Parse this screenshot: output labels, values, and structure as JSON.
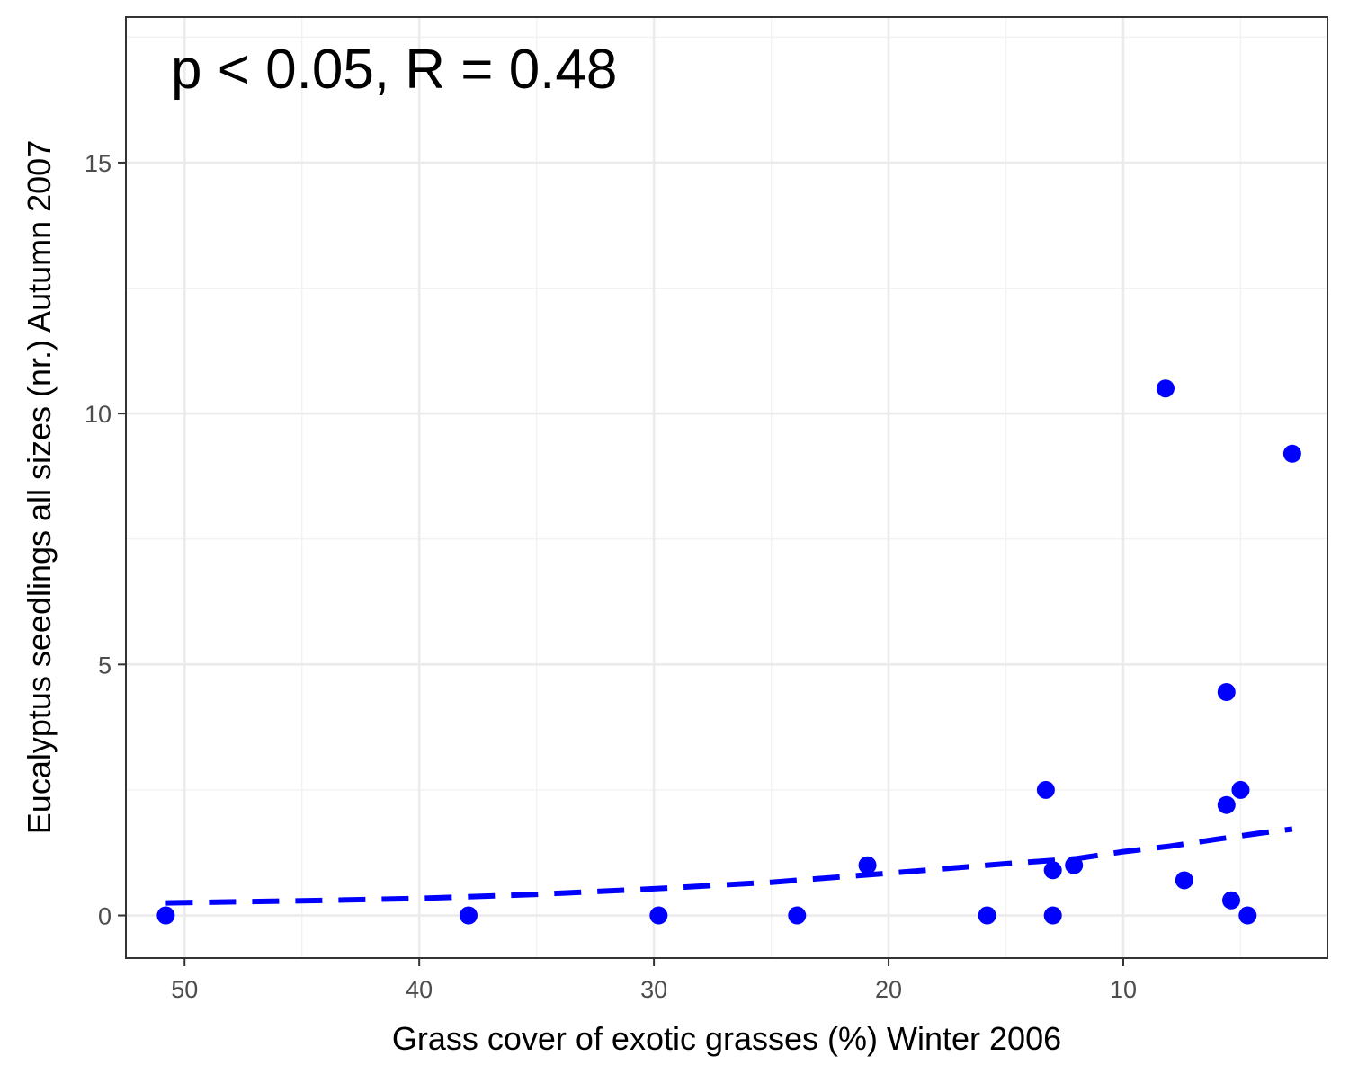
{
  "chart_data": {
    "type": "scatter",
    "annotation": "p < 0.05, R = 0.48",
    "xlabel": "Grass cover of exotic grasses (%) Winter 2006",
    "ylabel": "Eucalyptus seedlings all sizes (nr.) Autumn 2007",
    "x_reversed": true,
    "xlim": [
      52.5,
      1.3
    ],
    "ylim": [
      -0.85,
      17.9
    ],
    "x_ticks": [
      50,
      40,
      30,
      20,
      10
    ],
    "x_tick_labels": [
      "50",
      "40",
      "30",
      "20",
      "10"
    ],
    "y_ticks": [
      0,
      5,
      10,
      15
    ],
    "y_tick_labels": [
      "0",
      "5",
      "10",
      "15"
    ],
    "grid": true,
    "point_color": "#0000ff",
    "line_color": "#0000ff",
    "points": [
      {
        "x": 50.8,
        "y": 0
      },
      {
        "x": 37.9,
        "y": 0
      },
      {
        "x": 29.8,
        "y": 0
      },
      {
        "x": 23.9,
        "y": 0
      },
      {
        "x": 20.9,
        "y": 1.0
      },
      {
        "x": 15.8,
        "y": 0
      },
      {
        "x": 13.3,
        "y": 2.5
      },
      {
        "x": 13.0,
        "y": 0.9
      },
      {
        "x": 13.0,
        "y": 0
      },
      {
        "x": 12.1,
        "y": 1.0
      },
      {
        "x": 8.2,
        "y": 10.5
      },
      {
        "x": 7.4,
        "y": 0.7
      },
      {
        "x": 5.6,
        "y": 4.45
      },
      {
        "x": 5.6,
        "y": 2.2
      },
      {
        "x": 5.4,
        "y": 0.3
      },
      {
        "x": 5.0,
        "y": 2.5
      },
      {
        "x": 4.7,
        "y": 0
      },
      {
        "x": 2.8,
        "y": 9.2
      }
    ],
    "fit_line": {
      "style": "dashed",
      "x": [
        50.8,
        45,
        40,
        35,
        30,
        25,
        20,
        15,
        12,
        10,
        8,
        6,
        4,
        2.8
      ],
      "y": [
        0.25,
        0.29,
        0.34,
        0.42,
        0.53,
        0.66,
        0.84,
        1.03,
        1.13,
        1.27,
        1.38,
        1.52,
        1.65,
        1.72
      ]
    }
  }
}
